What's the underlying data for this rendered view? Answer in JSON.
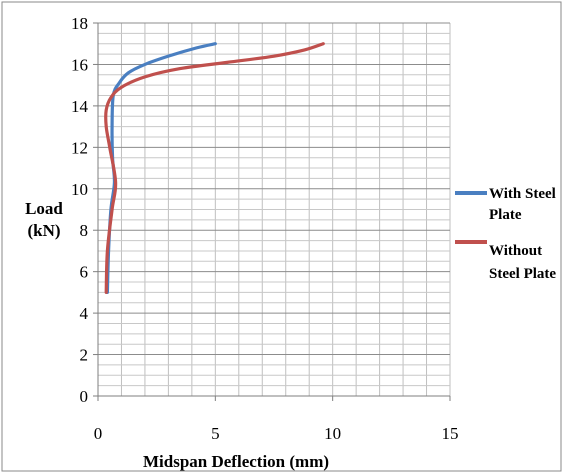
{
  "chart_data": {
    "type": "line",
    "title": "",
    "xlabel": "Midspan Deflection (mm)",
    "ylabel_line1": "Load",
    "ylabel_line2": "(kN)",
    "xlim": [
      0,
      15
    ],
    "ylim": [
      0,
      18
    ],
    "xticks": [
      0,
      5,
      10,
      15
    ],
    "yticks": [
      0,
      2,
      4,
      6,
      8,
      10,
      12,
      14,
      16,
      18
    ],
    "grid": true,
    "legend_position": "right",
    "series": [
      {
        "name": "With Steel Plate",
        "legend_line1": "With Steel",
        "legend_line2": "Plate",
        "color": "#4a7fc1",
        "x": [
          0.4,
          0.45,
          0.55,
          0.7,
          0.62,
          0.6,
          0.65,
          0.9,
          1.3,
          2.0,
          3.0,
          4.2,
          5.0
        ],
        "y": [
          5,
          7,
          9,
          10.3,
          11.5,
          13,
          14.5,
          15.1,
          15.6,
          16.0,
          16.4,
          16.8,
          17.0
        ]
      },
      {
        "name": "Without Steel Plate",
        "legend_line1": "Without",
        "legend_line2": "Steel Plate",
        "color": "#c0504d",
        "x": [
          0.35,
          0.4,
          0.6,
          0.75,
          0.5,
          0.35,
          0.35,
          0.55,
          1.0,
          2.0,
          3.5,
          5.5,
          7.5,
          8.8,
          9.6
        ],
        "y": [
          5,
          7,
          9,
          10.3,
          12,
          13,
          13.8,
          14.4,
          14.9,
          15.4,
          15.8,
          16.1,
          16.4,
          16.7,
          17.0
        ]
      }
    ]
  }
}
